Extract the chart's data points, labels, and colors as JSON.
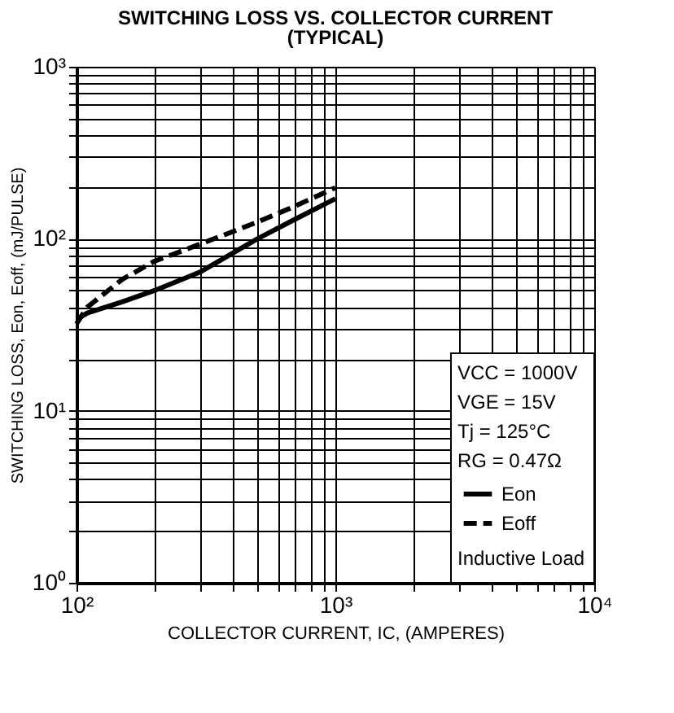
{
  "chart_data": {
    "type": "line",
    "title": "SWITCHING LOSS VS. COLLECTOR CURRENT",
    "subtitle": "(TYPICAL)",
    "xlabel": "COLLECTOR CURRENT, IC, (AMPERES)",
    "ylabel": "SWITCHING LOSS, Eon, Eoff, (mJ/PULSE)",
    "log": "xy",
    "grid": true,
    "legend": "bottom right",
    "marker": "none",
    "xlim": [
      100,
      10000
    ],
    "ylim": [
      1,
      1000
    ],
    "xticks": [
      {
        "value": 100,
        "label": "10²"
      },
      {
        "value": 200,
        "label": null
      },
      {
        "value": 300,
        "label": null
      },
      {
        "value": 400,
        "label": null
      },
      {
        "value": 500,
        "label": null
      },
      {
        "value": 600,
        "label": null
      },
      {
        "value": 700,
        "label": null
      },
      {
        "value": 800,
        "label": null
      },
      {
        "value": 900,
        "label": null
      },
      {
        "value": 1000,
        "label": "10³"
      },
      {
        "value": 2000,
        "label": null
      },
      {
        "value": 3000,
        "label": null
      },
      {
        "value": 4000,
        "label": null
      },
      {
        "value": 5000,
        "label": null
      },
      {
        "value": 6000,
        "label": null
      },
      {
        "value": 7000,
        "label": null
      },
      {
        "value": 8000,
        "label": null
      },
      {
        "value": 9000,
        "label": null
      },
      {
        "value": 10000,
        "label": "10⁴"
      }
    ],
    "yticks": [
      {
        "value": 1,
        "label": "10⁰"
      },
      {
        "value": 2,
        "label": null
      },
      {
        "value": 3,
        "label": null
      },
      {
        "value": 4,
        "label": null
      },
      {
        "value": 5,
        "label": null
      },
      {
        "value": 6,
        "label": null
      },
      {
        "value": 7,
        "label": null
      },
      {
        "value": 8,
        "label": null
      },
      {
        "value": 9,
        "label": null
      },
      {
        "value": 10,
        "label": "10¹"
      },
      {
        "value": 20,
        "label": null
      },
      {
        "value": 30,
        "label": null
      },
      {
        "value": 40,
        "label": null
      },
      {
        "value": 50,
        "label": null
      },
      {
        "value": 60,
        "label": null
      },
      {
        "value": 70,
        "label": null
      },
      {
        "value": 80,
        "label": null
      },
      {
        "value": 90,
        "label": null
      },
      {
        "value": 100,
        "label": "10²"
      },
      {
        "value": 200,
        "label": null
      },
      {
        "value": 300,
        "label": null
      },
      {
        "value": 400,
        "label": null
      },
      {
        "value": 500,
        "label": null
      },
      {
        "value": 600,
        "label": null
      },
      {
        "value": 700,
        "label": null
      },
      {
        "value": 800,
        "label": null
      },
      {
        "value": 900,
        "label": null
      },
      {
        "value": 1000,
        "label": "10³"
      }
    ],
    "series": [
      {
        "name": "Eon",
        "color": "#000000",
        "line_style": "solid",
        "x": [
          100,
          110,
          150,
          200,
          300,
          500,
          700,
          1000
        ],
        "values": [
          34,
          37,
          43,
          50,
          64,
          100,
          130,
          171
        ]
      },
      {
        "name": "Eoff",
        "color": "#000000",
        "line_style": "dashed",
        "x": [
          100,
          110,
          150,
          200,
          300,
          500,
          700,
          1000
        ],
        "values": [
          32,
          40,
          58,
          74,
          93,
          125,
          155,
          198
        ]
      }
    ],
    "annotations": [
      "VCC = 1000V",
      "VGE = 15V",
      "Tj = 125°C",
      "RG = 0.47Ω",
      "Inductive Load"
    ]
  }
}
